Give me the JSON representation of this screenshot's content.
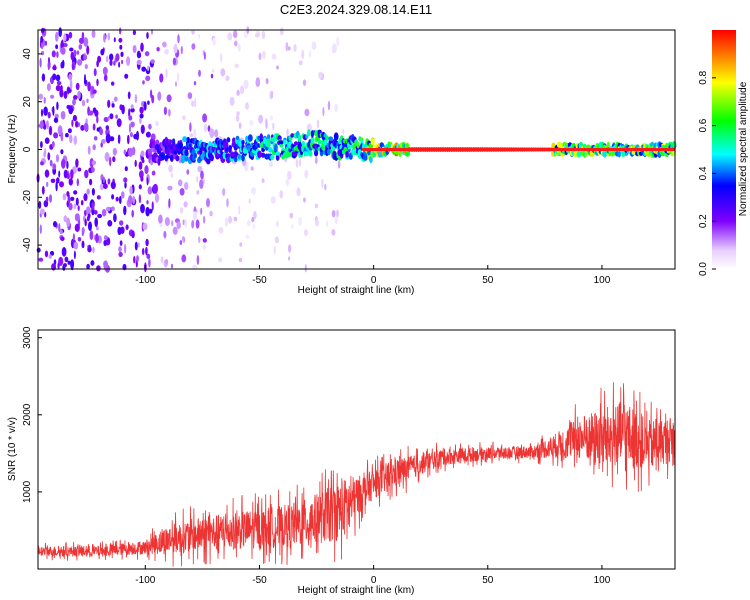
{
  "title": "C2E3.2024.329.08.14.E11",
  "chart_data": [
    {
      "type": "heatmap",
      "xlabel": "Height of straight line (km)",
      "ylabel": "Frequency (Hz)",
      "xlim": [
        -147,
        132
      ],
      "ylim": [
        -50,
        50
      ],
      "xticks": [
        -100,
        -50,
        0,
        50,
        100
      ],
      "yticks": [
        -40,
        -20,
        0,
        20,
        40
      ],
      "colorbar": {
        "label": "Normalized spectral amplitude",
        "range": [
          0,
          1
        ],
        "ticks": [
          0.0,
          0.2,
          0.4,
          0.6,
          0.8
        ],
        "colors": [
          "#ffffff",
          "#e6ccff",
          "#7f00ff",
          "#0000ff",
          "#00ffff",
          "#00ff00",
          "#ffff00",
          "#ff0000"
        ]
      },
      "ridge": {
        "x": [
          -97,
          -85,
          -70,
          -55,
          -40,
          -25,
          -15,
          -5,
          0,
          15,
          40,
          80,
          100,
          132
        ],
        "freq": [
          -1,
          0,
          -1,
          1,
          1,
          3,
          1,
          0,
          0,
          0,
          0,
          0,
          0,
          0
        ],
        "amplitude": [
          0.3,
          0.45,
          0.5,
          0.55,
          0.6,
          0.65,
          0.6,
          0.7,
          0.9,
          0.95,
          0.95,
          0.85,
          0.8,
          0.8
        ]
      }
    },
    {
      "type": "line",
      "xlabel": "Height of straight line (km)",
      "ylabel": "SNR (10 * v/v)",
      "xlim": [
        -147,
        132
      ],
      "ylim": [
        0,
        3100
      ],
      "xticks": [
        -100,
        -50,
        0,
        50,
        100
      ],
      "yticks": [
        1000,
        2000,
        3000
      ],
      "color": "#ee3333",
      "envelope": {
        "x": [
          -147,
          -120,
          -100,
          -90,
          -80,
          -60,
          -40,
          -30,
          -20,
          -12,
          -5,
          0,
          10,
          20,
          30,
          50,
          70,
          80,
          90,
          100,
          110,
          120,
          132
        ],
        "mean": [
          230,
          230,
          280,
          380,
          430,
          500,
          550,
          600,
          700,
          800,
          1000,
          1100,
          1250,
          1350,
          1450,
          1500,
          1520,
          1600,
          1700,
          1700,
          1750,
          1600,
          1700
        ],
        "spread": [
          120,
          130,
          160,
          350,
          400,
          450,
          500,
          550,
          650,
          700,
          400,
          350,
          350,
          250,
          200,
          150,
          150,
          300,
          500,
          700,
          800,
          600,
          500
        ]
      }
    }
  ]
}
